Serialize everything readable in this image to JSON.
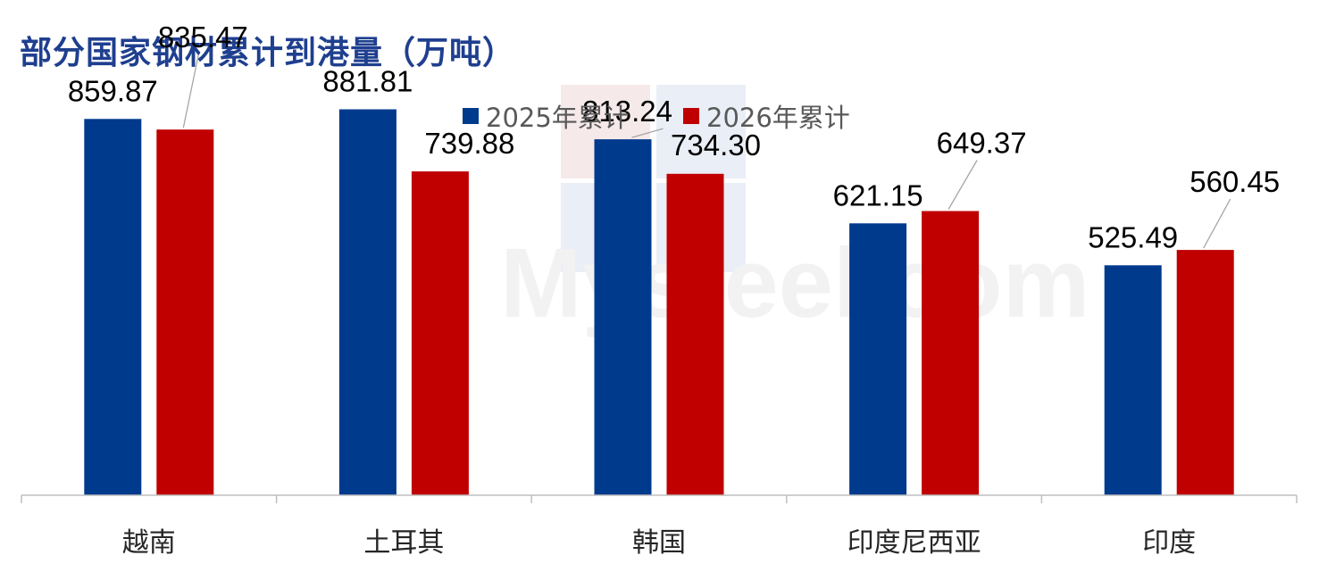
{
  "chart_data": {
    "type": "bar",
    "title": "部分国家钢材累计到港量（万吨）",
    "categories": [
      "越南",
      "土耳其",
      "韩国",
      "印度尼西亚",
      "印度"
    ],
    "series": [
      {
        "name": "2025年累计",
        "color": "#003a8c",
        "values": [
          859.87,
          881.81,
          813.24,
          621.15,
          525.49
        ]
      },
      {
        "name": "2026年累计",
        "color": "#c00000",
        "values": [
          835.47,
          739.88,
          734.3,
          649.37,
          560.45
        ]
      }
    ],
    "ylim": [
      0,
      1050
    ],
    "grid": false,
    "legend": "top-center",
    "xlabel": "",
    "ylabel": "",
    "watermark": "Mysteel.com"
  }
}
